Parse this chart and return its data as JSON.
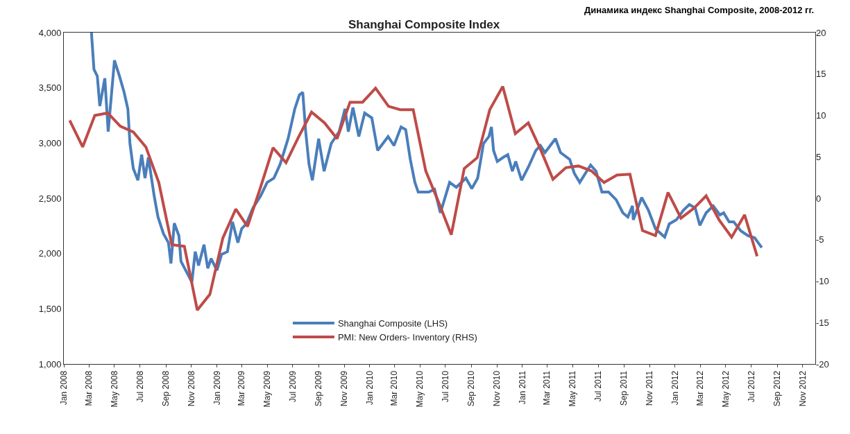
{
  "chart_data": {
    "type": "line",
    "subtitle": "Динамика индекс Shanghai Composite, 2008-2012 гг.",
    "title": "Shanghai Composite Index",
    "xlim": [
      "2008-01-01",
      "2012-12-01"
    ],
    "xticks": [
      {
        "value": "2008-01",
        "label": "Jan 2008"
      },
      {
        "value": "2008-03",
        "label": "Mar 2008"
      },
      {
        "value": "2008-05",
        "label": "May 2008"
      },
      {
        "value": "2008-07",
        "label": "Jul 2008"
      },
      {
        "value": "2008-09",
        "label": "Sep 2008"
      },
      {
        "value": "2008-11",
        "label": "Nov 2008"
      },
      {
        "value": "2009-01",
        "label": "Jan 2009"
      },
      {
        "value": "2009-03",
        "label": "Mar 2009"
      },
      {
        "value": "2009-05",
        "label": "May 2009"
      },
      {
        "value": "2009-07",
        "label": "Jul 2009"
      },
      {
        "value": "2009-09",
        "label": "Sep 2009"
      },
      {
        "value": "2009-11",
        "label": "Nov 2009"
      },
      {
        "value": "2010-01",
        "label": "Jan 2010"
      },
      {
        "value": "2010-03",
        "label": "Mar 2010"
      },
      {
        "value": "2010-05",
        "label": "May 2010"
      },
      {
        "value": "2010-07",
        "label": "Jul 2010"
      },
      {
        "value": "2010-09",
        "label": "Sep 2010"
      },
      {
        "value": "2010-11",
        "label": "Nov 2010"
      },
      {
        "value": "2011-01",
        "label": "Jan 2011"
      },
      {
        "value": "2011-03",
        "label": "Mar 2011"
      },
      {
        "value": "2011-05",
        "label": "May 2011"
      },
      {
        "value": "2011-07",
        "label": "Jul 2011"
      },
      {
        "value": "2011-09",
        "label": "Sep 2011"
      },
      {
        "value": "2011-11",
        "label": "Nov 2011"
      },
      {
        "value": "2012-01",
        "label": "Jan 2012"
      },
      {
        "value": "2012-03",
        "label": "Mar 2012"
      },
      {
        "value": "2012-05",
        "label": "May 2012"
      },
      {
        "value": "2012-07",
        "label": "Jul 2012"
      },
      {
        "value": "2012-09",
        "label": "Sep 2012"
      },
      {
        "value": "2012-11",
        "label": "Nov 2012"
      }
    ],
    "ylim": [
      1000,
      4000
    ],
    "yticks": [
      {
        "value": 1000,
        "label": "1,000"
      },
      {
        "value": 1500,
        "label": "1,500"
      },
      {
        "value": 2000,
        "label": "2,000"
      },
      {
        "value": 2500,
        "label": "2,500"
      },
      {
        "value": 3000,
        "label": "3,000"
      },
      {
        "value": 3500,
        "label": "3,500"
      },
      {
        "value": 4000,
        "label": "4,000"
      }
    ],
    "y2lim": [
      -20,
      20
    ],
    "y2ticks": [
      -20,
      -15,
      -10,
      -5,
      0,
      5,
      10,
      15,
      20
    ],
    "grid": false,
    "legend": "bottom",
    "marker": "none",
    "line_style": "solid",
    "series": [
      {
        "name": "Shanghai Composite (LHS)",
        "color": "#4a7ebb",
        "x": [
          "2008-03-07",
          "2008-03-13",
          "2008-03-21",
          "2008-03-27",
          "2008-04-08",
          "2008-04-16",
          "2008-05-01",
          "2008-05-13",
          "2008-05-24",
          "2008-06-02",
          "2008-06-07",
          "2008-06-15",
          "2008-06-26",
          "2008-07-05",
          "2008-07-13",
          "2008-07-21",
          "2008-08-04",
          "2008-08-13",
          "2008-08-26",
          "2008-09-07",
          "2008-09-13",
          "2008-09-21",
          "2008-10-02",
          "2008-10-07",
          "2008-10-21",
          "2008-11-02",
          "2008-11-10",
          "2008-11-18",
          "2008-12-01",
          "2008-12-10",
          "2008-12-18",
          "2009-01-01",
          "2009-01-12",
          "2009-01-26",
          "2009-02-07",
          "2009-02-20",
          "2009-03-01",
          "2009-03-12",
          "2009-03-28",
          "2009-04-15",
          "2009-05-01",
          "2009-05-17",
          "2009-06-01",
          "2009-06-20",
          "2009-07-06",
          "2009-07-17",
          "2009-07-25",
          "2009-08-01",
          "2009-08-09",
          "2009-08-17",
          "2009-09-01",
          "2009-09-14",
          "2009-10-01",
          "2009-10-20",
          "2009-11-03",
          "2009-11-11",
          "2009-11-22",
          "2009-12-06",
          "2009-12-20",
          "2010-01-06",
          "2010-01-20",
          "2010-02-14",
          "2010-02-28",
          "2010-03-17",
          "2010-03-28",
          "2010-04-08",
          "2010-04-19",
          "2010-04-27",
          "2010-05-22",
          "2010-06-05",
          "2010-06-19",
          "2010-07-11",
          "2010-07-27",
          "2010-08-19",
          "2010-09-02",
          "2010-09-16",
          "2010-09-30",
          "2010-10-13",
          "2010-10-19",
          "2010-10-24",
          "2010-11-02",
          "2010-11-16",
          "2010-11-27",
          "2010-12-08",
          "2010-12-16",
          "2010-12-30",
          "2011-01-16",
          "2011-02-02",
          "2011-02-13",
          "2011-02-24",
          "2011-03-21",
          "2011-04-02",
          "2011-04-24",
          "2011-05-05",
          "2011-05-18",
          "2011-06-13",
          "2011-06-26",
          "2011-07-10",
          "2011-07-26",
          "2011-08-13",
          "2011-08-29",
          "2011-09-10",
          "2011-09-21",
          "2011-09-23",
          "2011-10-13",
          "2011-10-29",
          "2011-11-15",
          "2011-12-07",
          "2011-12-18",
          "2012-01-04",
          "2012-01-21",
          "2012-02-04",
          "2012-02-18",
          "2012-02-29",
          "2012-03-15",
          "2012-04-01",
          "2012-04-17",
          "2012-04-26",
          "2012-05-09",
          "2012-05-20",
          "2012-06-06",
          "2012-06-23",
          "2012-07-09",
          "2012-07-26"
        ],
        "values": [
          4000,
          3667,
          3605,
          3335,
          3586,
          3103,
          3749,
          3605,
          3460,
          3310,
          2996,
          2770,
          2663,
          2895,
          2682,
          2870,
          2519,
          2331,
          2180,
          2098,
          1910,
          2274,
          2161,
          1929,
          1828,
          1741,
          2017,
          1891,
          2080,
          1866,
          1954,
          1847,
          1992,
          2017,
          2287,
          2098,
          2224,
          2268,
          2412,
          2519,
          2644,
          2682,
          2808,
          3040,
          3310,
          3435,
          3460,
          3103,
          2808,
          2663,
          3040,
          2745,
          2996,
          3103,
          3310,
          3103,
          3322,
          3059,
          3272,
          3228,
          2933,
          3059,
          2977,
          3146,
          3121,
          2852,
          2644,
          2556,
          2556,
          2581,
          2368,
          2644,
          2600,
          2682,
          2588,
          2682,
          2996,
          3059,
          3146,
          2933,
          2833,
          2870,
          2895,
          2745,
          2833,
          2663,
          2789,
          2933,
          2977,
          2914,
          3040,
          2914,
          2852,
          2726,
          2644,
          2801,
          2745,
          2556,
          2556,
          2487,
          2368,
          2331,
          2431,
          2305,
          2506,
          2393,
          2224,
          2149,
          2268,
          2305,
          2393,
          2443,
          2412,
          2255,
          2368,
          2431,
          2349,
          2368,
          2287,
          2287,
          2205,
          2161,
          2142,
          2054
        ]
      },
      {
        "name": "PMI: New Orders- Inventory (RHS)",
        "color": "#be4b48",
        "axis": "y2",
        "x": [
          "2008-01-15",
          "2008-02-15",
          "2008-03-15",
          "2008-04-15",
          "2008-05-15",
          "2008-06-15",
          "2008-07-15",
          "2008-08-15",
          "2008-09-15",
          "2008-10-15",
          "2008-11-15",
          "2008-12-15",
          "2009-01-15",
          "2009-02-15",
          "2009-03-15",
          "2009-04-15",
          "2009-05-15",
          "2009-06-15",
          "2009-07-15",
          "2009-08-15",
          "2009-09-15",
          "2009-10-15",
          "2009-11-15",
          "2009-12-15",
          "2010-01-15",
          "2010-02-15",
          "2010-03-15",
          "2010-04-15",
          "2010-05-15",
          "2010-06-15",
          "2010-07-15",
          "2010-08-15",
          "2010-09-15",
          "2010-10-15",
          "2010-11-15",
          "2010-12-15",
          "2011-01-15",
          "2011-02-15",
          "2011-03-15",
          "2011-04-15",
          "2011-05-15",
          "2011-06-15",
          "2011-07-15",
          "2011-08-15",
          "2011-09-15",
          "2011-10-15",
          "2011-11-15",
          "2011-12-15",
          "2012-01-15",
          "2012-02-15",
          "2012-03-15",
          "2012-04-15",
          "2012-05-15",
          "2012-06-15",
          "2012-07-15"
        ],
        "values": [
          9.4,
          6.2,
          10.0,
          10.3,
          8.7,
          8.0,
          6.2,
          1.9,
          -5.6,
          -5.8,
          -13.5,
          -11.6,
          -4.8,
          -1.3,
          -3.4,
          1.3,
          6.1,
          4.3,
          7.4,
          10.4,
          9.1,
          7.2,
          11.6,
          11.6,
          13.3,
          11.1,
          10.7,
          10.7,
          3.3,
          -0.5,
          -4.4,
          3.6,
          4.9,
          10.7,
          13.5,
          7.8,
          9.1,
          5.7,
          2.3,
          3.7,
          3.9,
          3.3,
          1.9,
          2.8,
          2.9,
          -3.9,
          -4.5,
          0.7,
          -2.4,
          -1.2,
          0.3,
          -2.6,
          -4.7,
          -2.0,
          -7.0
        ]
      }
    ]
  }
}
